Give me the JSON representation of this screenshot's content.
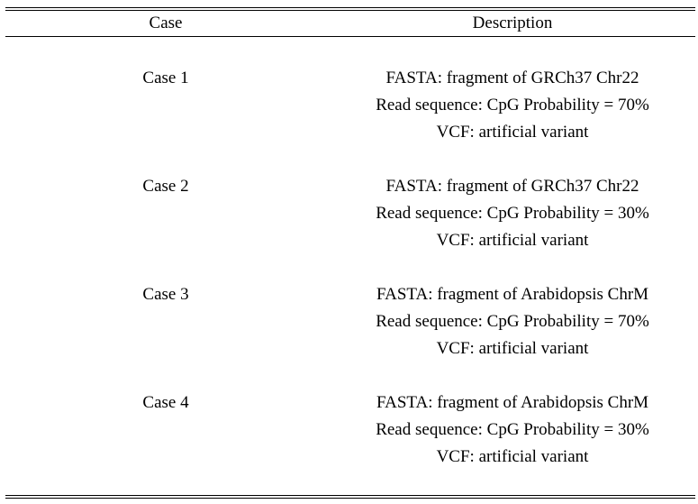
{
  "table": {
    "headers": {
      "case": "Case",
      "description": "Description"
    },
    "rows": [
      {
        "case": "Case 1",
        "lines": [
          "FASTA: fragment of GRCh37 Chr22",
          "Read sequence: CpG Probability = 70%",
          "VCF: artificial variant"
        ]
      },
      {
        "case": "Case 2",
        "lines": [
          "FASTA: fragment of GRCh37 Chr22",
          "Read sequence: CpG Probability = 30%",
          "VCF: artificial variant"
        ]
      },
      {
        "case": "Case 3",
        "lines": [
          "FASTA: fragment of Arabidopsis ChrM",
          "Read sequence: CpG Probability = 70%",
          "VCF: artificial variant"
        ]
      },
      {
        "case": "Case 4",
        "lines": [
          "FASTA: fragment of Arabidopsis ChrM",
          "Read sequence: CpG Probability = 30%",
          "VCF: artificial variant"
        ]
      }
    ]
  }
}
